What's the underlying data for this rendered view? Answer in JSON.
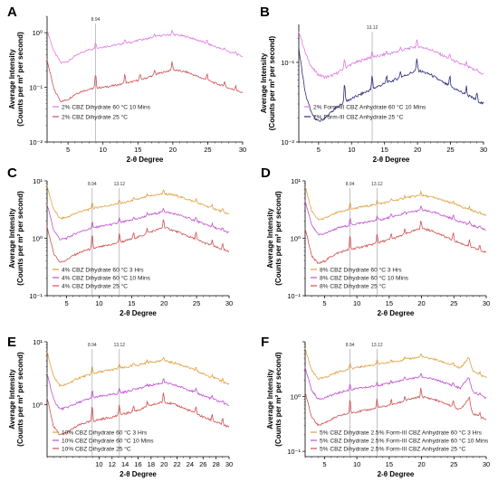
{
  "figure": {
    "bg": "#ffffff"
  },
  "chart_data": [
    {
      "panel": "A",
      "type": "line",
      "yscale": "log",
      "xlim": [
        2,
        30
      ],
      "ylim": [
        0.01,
        2
      ],
      "xticks": [
        "5",
        "10",
        "15",
        "20",
        "25",
        "30"
      ],
      "yticks": [
        "10⁻²",
        "10⁻¹",
        "10⁰"
      ],
      "xlabel": "2-θ Degree",
      "ylabel": [
        "Average Intensity",
        "(Counts per m² per second)"
      ],
      "annotations": [
        {
          "x": 8.94,
          "label": "8.94"
        }
      ],
      "series": [
        {
          "name": "2% CBZ Dihydrate 60 °C 10 Mins",
          "color": "#e07be0",
          "x": [
            2,
            3,
            4,
            5,
            6,
            7,
            8,
            9,
            10,
            12,
            14,
            16,
            18,
            20,
            22,
            24,
            26,
            28,
            30
          ],
          "values": [
            1.1,
            0.45,
            0.28,
            0.3,
            0.37,
            0.44,
            0.49,
            0.52,
            0.55,
            0.6,
            0.67,
            0.76,
            0.88,
            0.93,
            0.85,
            0.7,
            0.56,
            0.45,
            0.37
          ]
        },
        {
          "name": "2% CBZ Dihydrate 25 °C",
          "color": "#d05050",
          "x": [
            2,
            3,
            4,
            5,
            6,
            7,
            8,
            9,
            10,
            12,
            14,
            16,
            18,
            20,
            22,
            24,
            26,
            28,
            30
          ],
          "values": [
            0.32,
            0.09,
            0.055,
            0.06,
            0.075,
            0.085,
            0.092,
            0.098,
            0.1,
            0.11,
            0.125,
            0.145,
            0.18,
            0.21,
            0.19,
            0.15,
            0.12,
            0.097,
            0.08
          ]
        }
      ]
    },
    {
      "panel": "B",
      "type": "line",
      "yscale": "log",
      "xlim": [
        2,
        30
      ],
      "ylim": [
        0.01,
        0.3
      ],
      "xticks": [
        "5",
        "10",
        "15",
        "20",
        "25",
        "30"
      ],
      "yticks": [
        "10⁻²",
        "10⁻¹"
      ],
      "xlabel": "2-θ Degree",
      "ylabel": [
        "Average Intensity",
        "(Counts per m² per second)"
      ],
      "annotations": [
        {
          "x": 13.12,
          "label": "13.12"
        }
      ],
      "series": [
        {
          "name": "2% Form-III CBZ Anhydrate 60 °C 10 Mins",
          "color": "#e07be0",
          "x": [
            2,
            3,
            4,
            5,
            6,
            7,
            8,
            9,
            10,
            12,
            14,
            16,
            18,
            20,
            22,
            24,
            26,
            28,
            30
          ],
          "values": [
            0.25,
            0.13,
            0.085,
            0.07,
            0.065,
            0.068,
            0.075,
            0.085,
            0.095,
            0.11,
            0.12,
            0.13,
            0.145,
            0.16,
            0.145,
            0.12,
            0.1,
            0.085,
            0.07
          ]
        },
        {
          "name": "2% Form-III CBZ Anhydrate 25 °C",
          "color": "#2a2a7a",
          "x": [
            2,
            3,
            4,
            5,
            6,
            7,
            8,
            9,
            10,
            12,
            14,
            16,
            18,
            20,
            22,
            24,
            26,
            28,
            30
          ],
          "values": [
            0.15,
            0.04,
            0.022,
            0.018,
            0.02,
            0.024,
            0.028,
            0.032,
            0.035,
            0.042,
            0.05,
            0.058,
            0.068,
            0.08,
            0.07,
            0.055,
            0.045,
            0.037,
            0.03
          ]
        }
      ]
    },
    {
      "panel": "C",
      "type": "line",
      "yscale": "log",
      "xlim": [
        2,
        30
      ],
      "ylim": [
        0.1,
        10
      ],
      "xticks": [
        "5",
        "10",
        "15",
        "20",
        "25",
        "30"
      ],
      "yticks": [
        "10⁻¹",
        "10⁰",
        "10¹"
      ],
      "xlabel": "2-θ Degree",
      "ylabel": [
        "Average Intensity",
        "(Counts per m² per second)"
      ],
      "annotations": [
        {
          "x": 8.94,
          "label": "8.94"
        },
        {
          "x": 13.12,
          "label": "13.12"
        }
      ],
      "series": [
        {
          "name": "4% CBZ Dihydrate 60 °C 3 Hrs",
          "color": "#e0a040",
          "x": [
            2,
            3,
            4,
            5,
            6,
            7,
            8,
            9,
            10,
            12,
            14,
            16,
            18,
            20,
            22,
            24,
            26,
            28,
            30
          ],
          "values": [
            8,
            3.2,
            2.2,
            2.3,
            2.6,
            2.9,
            3.1,
            3.3,
            3.5,
            3.8,
            4.2,
            4.8,
            5.5,
            6,
            5.5,
            4.6,
            3.8,
            3.2,
            2.6
          ]
        },
        {
          "name": "4% CBZ Dihydrate 60 °C 10 Mins",
          "color": "#c050d0",
          "x": [
            2,
            3,
            4,
            5,
            6,
            7,
            8,
            9,
            10,
            12,
            14,
            16,
            18,
            20,
            22,
            24,
            26,
            28,
            30
          ],
          "values": [
            4,
            1.4,
            0.95,
            1,
            1.15,
            1.3,
            1.4,
            1.5,
            1.6,
            1.75,
            1.95,
            2.2,
            2.6,
            2.9,
            2.6,
            2.2,
            1.8,
            1.5,
            1.25
          ]
        },
        {
          "name": "4% CBZ Dihydrate 25 °C",
          "color": "#d05050",
          "x": [
            2,
            3,
            4,
            5,
            6,
            7,
            8,
            9,
            10,
            12,
            14,
            16,
            18,
            20,
            22,
            24,
            26,
            28,
            30
          ],
          "values": [
            1.6,
            0.55,
            0.38,
            0.42,
            0.5,
            0.56,
            0.62,
            0.66,
            0.7,
            0.78,
            0.9,
            1.05,
            1.3,
            1.55,
            1.3,
            1.05,
            0.85,
            0.7,
            0.58
          ]
        }
      ]
    },
    {
      "panel": "D",
      "type": "line",
      "yscale": "log",
      "xlim": [
        2,
        30
      ],
      "ylim": [
        0.1,
        10
      ],
      "xticks": [
        "5",
        "10",
        "15",
        "20",
        "25",
        "30"
      ],
      "yticks": [
        "10⁻¹",
        "10⁰",
        "10¹"
      ],
      "xlabel": "2-θ Degree",
      "ylabel": [
        "Average Intensity",
        "(Counts per m² per second)"
      ],
      "annotations": [
        {
          "x": 8.94,
          "label": "8.94"
        },
        {
          "x": 13.12,
          "label": "13.12"
        }
      ],
      "series": [
        {
          "name": "8% CBZ Dihydrate 60 °C 3 Hrs",
          "color": "#e0a040",
          "x": [
            2,
            3,
            4,
            5,
            6,
            7,
            8,
            9,
            10,
            12,
            14,
            16,
            18,
            20,
            22,
            24,
            26,
            28,
            30
          ],
          "values": [
            8,
            3,
            2.1,
            2.2,
            2.5,
            2.8,
            3,
            3.2,
            3.4,
            3.7,
            4.1,
            4.6,
            5.2,
            5.6,
            5.1,
            4.3,
            3.6,
            3,
            2.5
          ]
        },
        {
          "name": "8% CBZ Dihydrate 60 °C 10 Mins",
          "color": "#c050d0",
          "x": [
            2,
            3,
            4,
            5,
            6,
            7,
            8,
            9,
            10,
            12,
            14,
            16,
            18,
            20,
            22,
            24,
            26,
            28,
            30
          ],
          "values": [
            4.5,
            1.7,
            1.15,
            1.2,
            1.35,
            1.5,
            1.6,
            1.7,
            1.8,
            1.95,
            2.15,
            2.45,
            2.8,
            3.1,
            2.8,
            2.35,
            1.95,
            1.65,
            1.4
          ]
        },
        {
          "name": "8% CBZ Dihydrate 25 °C",
          "color": "#d05050",
          "x": [
            2,
            3,
            4,
            5,
            6,
            7,
            8,
            9,
            10,
            12,
            14,
            16,
            18,
            20,
            22,
            24,
            26,
            28,
            30
          ],
          "values": [
            1.5,
            0.5,
            0.36,
            0.4,
            0.48,
            0.55,
            0.6,
            0.64,
            0.68,
            0.76,
            0.88,
            1.02,
            1.25,
            1.5,
            1.3,
            1.02,
            0.82,
            0.68,
            0.56
          ]
        }
      ]
    },
    {
      "panel": "E",
      "type": "line",
      "yscale": "log",
      "xlim": [
        2,
        30
      ],
      "ylim": [
        0.15,
        10
      ],
      "xticks": [
        "10",
        "12",
        "14",
        "16",
        "18",
        "20",
        "22",
        "24",
        "26",
        "28",
        "30"
      ],
      "yticks": [
        "10⁰",
        "10¹"
      ],
      "xlabel": "2-θ Degree",
      "ylabel": [
        "Average Intensity",
        "(Counts per m² per second)"
      ],
      "annotations": [
        {
          "x": 8.94,
          "label": "8.94"
        },
        {
          "x": 13.12,
          "label": "13.12"
        }
      ],
      "series": [
        {
          "name": "10% CBZ Dihydrate 60 °C 3 Hrs",
          "color": "#e0a040",
          "x": [
            2,
            3,
            4,
            5,
            6,
            7,
            8,
            9,
            10,
            12,
            14,
            16,
            18,
            20,
            22,
            24,
            26,
            28,
            30
          ],
          "values": [
            7,
            2.8,
            2,
            2.1,
            2.4,
            2.7,
            2.9,
            3.1,
            3.3,
            3.6,
            3.9,
            4.3,
            4.8,
            5,
            4.5,
            3.8,
            3.1,
            2.6,
            2.1
          ]
        },
        {
          "name": "10% CBZ Dihydrate 60 °C 10 Mins",
          "color": "#c050d0",
          "x": [
            2,
            3,
            4,
            5,
            6,
            7,
            8,
            9,
            10,
            12,
            14,
            16,
            18,
            20,
            22,
            24,
            26,
            28,
            30
          ],
          "values": [
            3.2,
            1.2,
            0.85,
            0.9,
            1,
            1.1,
            1.2,
            1.28,
            1.35,
            1.45,
            1.6,
            1.8,
            2.05,
            2.25,
            2,
            1.7,
            1.4,
            1.18,
            0.98
          ]
        },
        {
          "name": "10% CBZ Dihydrate 25 °C",
          "color": "#d05050",
          "x": [
            2,
            3,
            4,
            5,
            6,
            7,
            8,
            9,
            10,
            12,
            14,
            16,
            18,
            20,
            22,
            24,
            26,
            28,
            30
          ],
          "values": [
            1.3,
            0.45,
            0.33,
            0.36,
            0.42,
            0.48,
            0.52,
            0.55,
            0.58,
            0.64,
            0.72,
            0.82,
            0.98,
            1.12,
            0.98,
            0.8,
            0.64,
            0.53,
            0.44
          ]
        }
      ]
    },
    {
      "panel": "F",
      "type": "line",
      "yscale": "log",
      "xlim": [
        2,
        30
      ],
      "ylim": [
        0.08,
        10
      ],
      "xticks": [
        "5",
        "10",
        "15",
        "20",
        "25",
        "30"
      ],
      "yticks": [
        "10⁻¹",
        "10⁰"
      ],
      "xlabel": "2-θ Degree",
      "ylabel": [
        "Average Intensity",
        "(Counts per m² per second)"
      ],
      "annotations": [
        {
          "x": 8.94,
          "label": "8.94"
        },
        {
          "x": 13.12,
          "label": "13.12"
        }
      ],
      "series": [
        {
          "name": "5% CBZ Dihydrate 2.5% Form-III CBZ Anhydrate 60 °C 3 Hrs",
          "color": "#e0a040",
          "x": [
            2,
            3,
            4,
            5,
            6,
            7,
            8,
            9,
            10,
            12,
            14,
            16,
            18,
            20,
            22,
            24,
            26,
            27.2,
            28,
            30
          ],
          "values": [
            7.5,
            3,
            2.1,
            2.2,
            2.5,
            2.8,
            3,
            3.2,
            3.4,
            3.7,
            4,
            4.4,
            4.9,
            5.3,
            4.8,
            4,
            3.3,
            5,
            2.9,
            2.2
          ]
        },
        {
          "name": "5% CBZ Dihydrate 2.5% Form-III CBZ Anhydrate 60 °C 10 Mins",
          "color": "#c050d0",
          "x": [
            2,
            3,
            4,
            5,
            6,
            7,
            8,
            9,
            10,
            12,
            14,
            16,
            18,
            20,
            22,
            24,
            26,
            27.2,
            28,
            30
          ],
          "values": [
            3.5,
            1.3,
            0.9,
            0.95,
            1.05,
            1.15,
            1.25,
            1.32,
            1.4,
            1.5,
            1.65,
            1.85,
            2.1,
            2.3,
            2.05,
            1.72,
            1.42,
            2.2,
            1.2,
            0.95
          ]
        },
        {
          "name": "5% CBZ Dihydrate 2.5% Form-III CBZ Anhydrate 25 °C",
          "color": "#d05050",
          "x": [
            2,
            3,
            4,
            5,
            6,
            7,
            8,
            9,
            10,
            12,
            14,
            16,
            18,
            20,
            22,
            24,
            26,
            27.2,
            28,
            30
          ],
          "values": [
            1.2,
            0.42,
            0.3,
            0.33,
            0.38,
            0.43,
            0.47,
            0.5,
            0.53,
            0.58,
            0.65,
            0.74,
            0.88,
            1,
            0.88,
            0.72,
            0.58,
            0.9,
            0.48,
            0.38
          ]
        }
      ]
    }
  ]
}
